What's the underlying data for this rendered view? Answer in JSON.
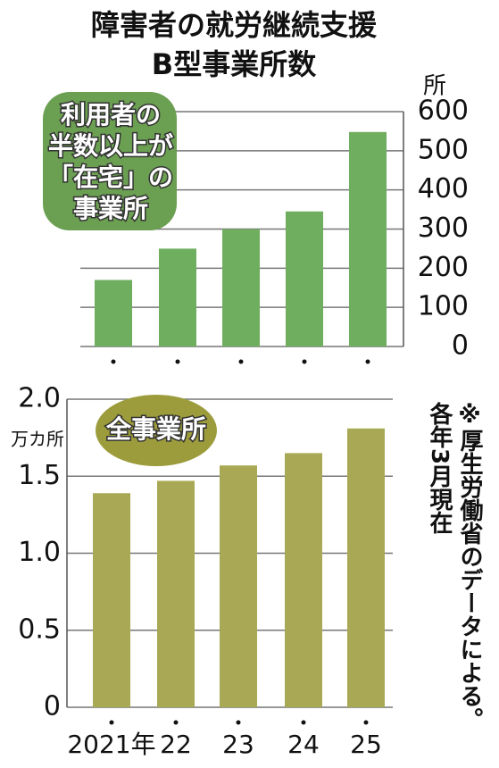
{
  "title_lines": [
    "障害者の就労継続支援",
    "B型事業所数"
  ],
  "note_lines": [
    "※厚生労働省のデータによる。",
    "各年3月現在"
  ],
  "chart_data": [
    {
      "type": "bar",
      "y_label": "所",
      "categories": [
        null,
        null,
        null,
        null,
        null
      ],
      "series": [
        {
          "name": [
            "利用者の",
            "半数以上が",
            "「在宅」の",
            "事業所"
          ],
          "color": "#6fae5f",
          "values": [
            170,
            250,
            300,
            345,
            548
          ]
        }
      ],
      "ylim": [
        0,
        600
      ],
      "yticks": [
        0,
        100,
        200,
        300,
        400,
        500,
        600
      ],
      "grid": true,
      "axis_side": "right"
    },
    {
      "type": "bar",
      "y_label": "万カ所",
      "categories": [
        "2021年",
        "22",
        "23",
        "24",
        "25"
      ],
      "series": [
        {
          "name": [
            "全事業所"
          ],
          "color": "#a9a955",
          "values": [
            1.39,
            1.47,
            1.57,
            1.65,
            1.81
          ]
        }
      ],
      "ylim": [
        0,
        2
      ],
      "yticks": [
        0,
        0.5,
        {
          "value": 1,
          "label": "1.0"
        },
        1.5,
        {
          "value": 2,
          "label": "2.0"
        }
      ],
      "grid": true,
      "axis_side": "left"
    }
  ]
}
